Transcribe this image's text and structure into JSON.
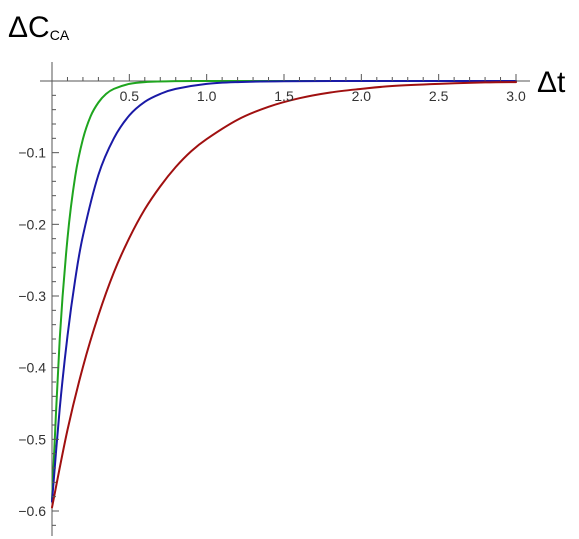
{
  "chart_data": {
    "type": "line",
    "xlabel": "Δt",
    "ylabel": {
      "main": "ΔC",
      "subscript": "CA"
    },
    "xlim": [
      0,
      3.0
    ],
    "ylim": [
      -0.62,
      0.0
    ],
    "x_ticks": [
      "0.5",
      "1.0",
      "1.5",
      "2.0",
      "2.5",
      "3.0"
    ],
    "y_ticks": [
      "−0.1",
      "−0.2",
      "−0.3",
      "−0.4",
      "−0.5",
      "−0.6"
    ],
    "x_tick_values": [
      0.5,
      1.0,
      1.5,
      2.0,
      2.5,
      3.0
    ],
    "y_tick_values": [
      -0.1,
      -0.2,
      -0.3,
      -0.4,
      -0.5,
      -0.6
    ],
    "series": [
      {
        "color": "#1fa51f",
        "x": [
          0,
          0.05,
          0.1,
          0.15,
          0.2,
          0.25,
          0.3,
          0.35,
          0.4,
          0.5,
          0.6,
          0.8,
          1.0,
          1.5,
          2.0,
          2.5,
          3.0
        ],
        "y": [
          -0.585,
          -0.36,
          -0.22,
          -0.133,
          -0.081,
          -0.049,
          -0.03,
          -0.018,
          -0.011,
          -0.004,
          -0.0015,
          -0.0002,
          0,
          0,
          0,
          0,
          0
        ]
      },
      {
        "color": "#1a1aa6",
        "x": [
          0,
          0.05,
          0.1,
          0.15,
          0.2,
          0.3,
          0.4,
          0.5,
          0.6,
          0.7,
          0.8,
          1.0,
          1.2,
          1.5,
          2.0,
          2.5,
          3.0
        ],
        "y": [
          -0.587,
          -0.457,
          -0.356,
          -0.277,
          -0.216,
          -0.131,
          -0.08,
          -0.048,
          -0.029,
          -0.018,
          -0.011,
          -0.004,
          -0.0015,
          -0.0003,
          0,
          0,
          0
        ]
      },
      {
        "color": "#a01010",
        "x": [
          0,
          0.1,
          0.2,
          0.3,
          0.4,
          0.5,
          0.6,
          0.7,
          0.8,
          0.9,
          1.0,
          1.2,
          1.4,
          1.6,
          1.8,
          2.0,
          2.2,
          2.5,
          2.8,
          3.0
        ],
        "y": [
          -0.595,
          -0.487,
          -0.399,
          -0.327,
          -0.267,
          -0.219,
          -0.179,
          -0.147,
          -0.12,
          -0.098,
          -0.081,
          -0.054,
          -0.036,
          -0.024,
          -0.016,
          -0.011,
          -0.007,
          -0.004,
          -0.002,
          -0.0015
        ]
      }
    ]
  }
}
